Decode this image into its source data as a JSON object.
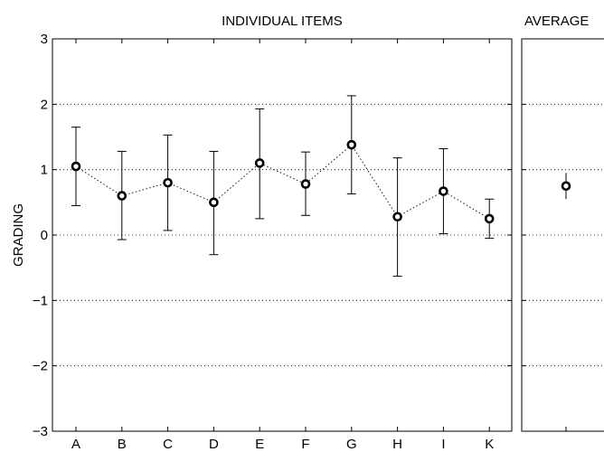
{
  "chart_data": [
    {
      "type": "scatter",
      "title": "INDIVIDUAL ITEMS",
      "xlabel": "",
      "ylabel": "GRADING",
      "ylim": [
        -3,
        3
      ],
      "yticks": [
        3,
        2,
        1,
        0,
        -1,
        -2,
        -3
      ],
      "yticklabels": [
        "3",
        "2",
        "1",
        "0",
        "−1",
        "−2",
        "−3"
      ],
      "grid": "horizontal-dotted",
      "connected": true,
      "error_bars": true,
      "categories": [
        "A",
        "B",
        "C",
        "D",
        "E",
        "F",
        "G",
        "H",
        "I",
        "K"
      ],
      "values": [
        1.05,
        0.6,
        0.8,
        0.5,
        1.1,
        0.78,
        1.38,
        0.28,
        0.67,
        0.25
      ],
      "error_low": [
        0.45,
        -0.07,
        0.07,
        -0.3,
        0.25,
        0.3,
        0.63,
        -0.63,
        0.02,
        -0.05
      ],
      "error_high": [
        1.65,
        1.28,
        1.53,
        1.28,
        1.93,
        1.27,
        2.13,
        1.18,
        1.32,
        0.55
      ]
    },
    {
      "type": "scatter",
      "title": "AVERAGE",
      "ylim": [
        -3,
        3
      ],
      "grid": "horizontal-dotted",
      "error_bars": true,
      "values": [
        0.75
      ],
      "error_low": [
        0.55
      ],
      "error_high": [
        0.95
      ]
    }
  ]
}
